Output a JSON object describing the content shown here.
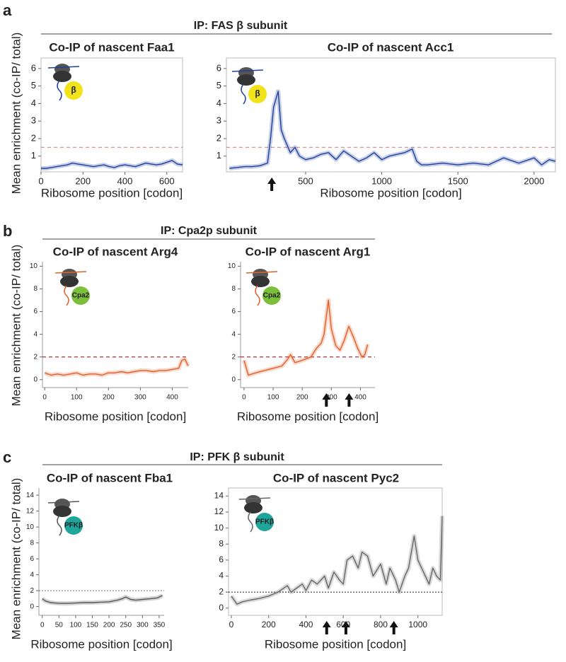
{
  "panels": [
    {
      "letter": "a",
      "header": "IP: FAS β subunit"
    },
    {
      "letter": "b",
      "header": "IP: Cpa2p subunit"
    },
    {
      "letter": "c",
      "header": "IP: PFK β subunit"
    }
  ],
  "chart_data": [
    {
      "type": "line",
      "title": "Co-IP of nascent Faa1",
      "x_label": "Ribosome position [codon]",
      "y_label": "Mean enrichment (co-IP/ total)",
      "icon_label": "β",
      "xlim": [
        0,
        675
      ],
      "ylim": [
        0.1,
        6.6
      ],
      "xticks": [
        0,
        200,
        400,
        600
      ],
      "yticks": [
        1,
        2,
        3,
        4,
        5,
        6
      ],
      "threshold": 1.5,
      "color": "#1f3f9a",
      "threshold_color": "#e08080",
      "x": [
        0,
        25,
        50,
        75,
        100,
        125,
        150,
        175,
        200,
        225,
        250,
        275,
        300,
        325,
        350,
        375,
        400,
        425,
        450,
        475,
        500,
        525,
        550,
        575,
        600,
        625,
        650,
        675
      ],
      "values": [
        0.3,
        0.3,
        0.35,
        0.4,
        0.45,
        0.5,
        0.6,
        0.55,
        0.5,
        0.45,
        0.4,
        0.45,
        0.5,
        0.4,
        0.35,
        0.45,
        0.5,
        0.45,
        0.4,
        0.5,
        0.6,
        0.55,
        0.5,
        0.55,
        0.65,
        0.75,
        0.55,
        0.5
      ]
    },
    {
      "type": "line",
      "title": "Co-IP of nascent Acc1",
      "x_label": "Ribosome position [codon]",
      "icon_label": "β",
      "xlim": [
        -20,
        2140
      ],
      "ylim": [
        0.1,
        6.6
      ],
      "xticks": [
        500,
        1000,
        1500,
        2000
      ],
      "yticks": [
        1,
        2,
        3,
        4,
        5,
        6
      ],
      "threshold": 1.5,
      "color": "#1f3f9a",
      "threshold_color": "#e08080",
      "arrows": [
        278
      ],
      "x": [
        0,
        50,
        100,
        150,
        200,
        250,
        270,
        290,
        300,
        320,
        340,
        360,
        380,
        400,
        430,
        460,
        500,
        550,
        600,
        650,
        700,
        750,
        800,
        850,
        900,
        950,
        1000,
        1050,
        1100,
        1150,
        1200,
        1230,
        1260,
        1300,
        1400,
        1500,
        1600,
        1700,
        1800,
        1900,
        2000,
        2050,
        2100,
        2140
      ],
      "values": [
        0.3,
        0.35,
        0.4,
        0.4,
        0.45,
        0.6,
        2,
        3.8,
        4.1,
        4.7,
        2.5,
        2.0,
        1.6,
        1.2,
        1.5,
        1.0,
        0.8,
        0.9,
        1.1,
        1.2,
        0.8,
        1.3,
        1.0,
        0.7,
        0.9,
        1.2,
        0.8,
        1.0,
        1.1,
        1.2,
        1.4,
        0.7,
        0.5,
        0.5,
        0.6,
        0.5,
        0.6,
        0.5,
        0.9,
        0.6,
        0.9,
        0.5,
        0.8,
        0.7
      ]
    },
    {
      "type": "line",
      "title": "Co-IP of nascent Arg4",
      "x_label": "Ribosome position [codon]",
      "y_label": "Mean enrichment (co-IP/ total)",
      "icon_label": "Cpa2",
      "xlim": [
        -7,
        450
      ],
      "ylim": [
        -0.7,
        10.4
      ],
      "xticks": [
        0,
        100,
        200,
        300,
        400
      ],
      "yticks": [
        0,
        2,
        4,
        6,
        8,
        10
      ],
      "threshold": 2,
      "color": "#e0602a",
      "threshold_color": "#a02020",
      "x": [
        0,
        20,
        40,
        60,
        80,
        100,
        120,
        140,
        160,
        180,
        200,
        220,
        240,
        260,
        280,
        300,
        320,
        340,
        360,
        380,
        400,
        420,
        430,
        440,
        450
      ],
      "values": [
        0.6,
        0.4,
        0.5,
        0.4,
        0.5,
        0.6,
        0.4,
        0.5,
        0.5,
        0.4,
        0.6,
        0.6,
        0.7,
        0.6,
        0.7,
        0.8,
        0.8,
        0.7,
        0.8,
        0.8,
        0.9,
        1.0,
        1.7,
        1.8,
        1.2
      ]
    },
    {
      "type": "line",
      "title": "Co-IP of nascent Arg1",
      "x_label": "Ribosome position [codon]",
      "icon_label": "Cpa2",
      "xlim": [
        -12,
        450
      ],
      "ylim": [
        -0.7,
        10.4
      ],
      "xticks": [
        0,
        100,
        200,
        300,
        400
      ],
      "yticks": [
        0,
        2,
        4,
        6,
        8,
        10
      ],
      "threshold": 2,
      "color": "#e0602a",
      "threshold_color": "#a02020",
      "arrows": [
        283,
        361
      ],
      "x": [
        0,
        15,
        40,
        70,
        100,
        130,
        150,
        160,
        175,
        200,
        230,
        250,
        265,
        275,
        285,
        290,
        300,
        315,
        330,
        345,
        360,
        375,
        390,
        405,
        415,
        425
      ],
      "values": [
        1.7,
        0.4,
        0.6,
        0.8,
        1.0,
        1.2,
        1.8,
        2.2,
        1.5,
        1.7,
        2.0,
        2.8,
        3.2,
        4.0,
        6.0,
        7.0,
        4.5,
        3.0,
        2.6,
        3.5,
        4.7,
        3.8,
        2.8,
        2.0,
        2.2,
        3.1
      ]
    },
    {
      "type": "line",
      "title": "Co-IP of nascent Fba1",
      "x_label": "Ribosome position [codon]",
      "y_label": "Mean enrichment (co-IP/ total)",
      "icon_label": "PFKβ",
      "xlim": [
        -10,
        365
      ],
      "ylim": [
        -1.1,
        14.9
      ],
      "xticks": [
        0,
        50,
        100,
        150,
        200,
        250,
        300,
        350
      ],
      "yticks": [
        0,
        2,
        4,
        6,
        8,
        10,
        12,
        14
      ],
      "threshold": 2,
      "color": "#555555",
      "threshold_color": "#888888",
      "x": [
        0,
        10,
        25,
        50,
        75,
        100,
        125,
        150,
        175,
        200,
        225,
        240,
        250,
        265,
        280,
        300,
        325,
        345,
        360
      ],
      "values": [
        1.0,
        0.7,
        0.5,
        0.4,
        0.4,
        0.45,
        0.5,
        0.5,
        0.55,
        0.6,
        0.8,
        1.0,
        1.2,
        0.9,
        0.8,
        0.9,
        1.0,
        1.1,
        1.4
      ]
    },
    {
      "type": "line",
      "title": "Co-IP of nascent Pyc2",
      "x_label": "Ribosome position [codon]",
      "icon_label": "PFKβ",
      "xlim": [
        -15,
        1130
      ],
      "ylim": [
        -0.9,
        15
      ],
      "xticks": [
        0,
        200,
        400,
        600,
        800,
        1000
      ],
      "yticks": [
        0,
        2,
        4,
        6,
        8,
        10,
        12,
        14
      ],
      "threshold": 2,
      "color": "#666666",
      "threshold_color": "#333333",
      "arrows": [
        511,
        614,
        871
      ],
      "x": [
        0,
        30,
        60,
        100,
        150,
        200,
        250,
        300,
        320,
        350,
        380,
        400,
        430,
        460,
        500,
        520,
        550,
        580,
        600,
        620,
        650,
        680,
        700,
        730,
        760,
        800,
        830,
        850,
        880,
        900,
        930,
        950,
        980,
        1000,
        1030,
        1060,
        1080,
        1100,
        1120,
        1130
      ],
      "values": [
        1.5,
        0.5,
        0.8,
        1.0,
        1.2,
        1.5,
        2.0,
        2.8,
        2.0,
        2.5,
        3.0,
        2.2,
        3.5,
        3.0,
        4.0,
        2.5,
        4.5,
        3.5,
        3.0,
        6.0,
        6.5,
        5.0,
        7.0,
        6.5,
        4.0,
        5.5,
        3.0,
        5.0,
        3.5,
        2.0,
        4.0,
        5.0,
        9.0,
        6.0,
        4.5,
        3.0,
        5.0,
        4.0,
        3.5,
        11.5
      ]
    }
  ]
}
